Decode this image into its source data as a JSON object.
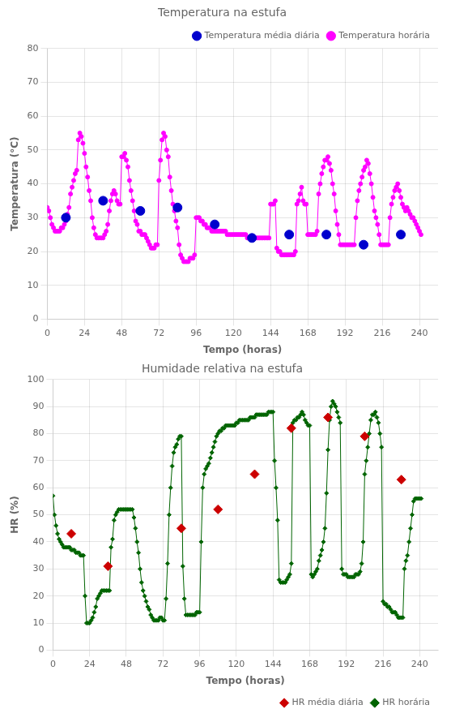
{
  "chart_data": [
    {
      "type": "line",
      "title": "Temperatura na estufa",
      "x_label": "Tempo (horas)",
      "y_label": "Temperatura (°C)",
      "xlim": [
        0,
        252
      ],
      "ylim": [
        0,
        80
      ],
      "xticks": [
        0,
        24,
        48,
        72,
        96,
        120,
        144,
        168,
        192,
        216,
        240
      ],
      "yticks": [
        0,
        10,
        20,
        30,
        40,
        50,
        60,
        70,
        80
      ],
      "grid": true,
      "legend": "upper right",
      "x": [
        0,
        1,
        2,
        3,
        4,
        5,
        6,
        7,
        8,
        9,
        10,
        11,
        12,
        13,
        14,
        15,
        16,
        17,
        18,
        19,
        20,
        21,
        22,
        23,
        24,
        25,
        26,
        27,
        28,
        29,
        30,
        31,
        32,
        33,
        34,
        35,
        36,
        37,
        38,
        39,
        40,
        41,
        42,
        43,
        44,
        45,
        46,
        47,
        48,
        49,
        50,
        51,
        52,
        53,
        54,
        55,
        56,
        57,
        58,
        59,
        60,
        61,
        62,
        63,
        64,
        65,
        66,
        67,
        68,
        69,
        70,
        71,
        72,
        73,
        74,
        75,
        76,
        77,
        78,
        79,
        80,
        81,
        82,
        83,
        84,
        85,
        86,
        87,
        88,
        89,
        90,
        91,
        92,
        93,
        94,
        95,
        96,
        97,
        98,
        99,
        100,
        101,
        102,
        103,
        104,
        105,
        106,
        107,
        108,
        109,
        110,
        111,
        112,
        113,
        114,
        115,
        116,
        117,
        118,
        119,
        120,
        121,
        122,
        123,
        124,
        125,
        126,
        127,
        128,
        129,
        130,
        131,
        132,
        133,
        134,
        135,
        136,
        137,
        138,
        139,
        140,
        141,
        142,
        143,
        144,
        145,
        146,
        147,
        148,
        149,
        150,
        151,
        152,
        153,
        154,
        155,
        156,
        157,
        158,
        159,
        160,
        161,
        162,
        163,
        164,
        165,
        166,
        167,
        168,
        169,
        170,
        171,
        172,
        173,
        174,
        175,
        176,
        177,
        178,
        179,
        180,
        181,
        182,
        183,
        184,
        185,
        186,
        187,
        188,
        189,
        190,
        191,
        192,
        193,
        194,
        195,
        196,
        197,
        198,
        199,
        200,
        201,
        202,
        203,
        204,
        205,
        206,
        207,
        208,
        209,
        210,
        211,
        212,
        213,
        214,
        215,
        216,
        217,
        218,
        219,
        220,
        221,
        222,
        223,
        224,
        225,
        226,
        227,
        228,
        229,
        230,
        231,
        232,
        233,
        234,
        235,
        236,
        237,
        238,
        239,
        240,
        241
      ],
      "series": [
        {
          "name": "Temperatura horária",
          "type": "line",
          "marker": "circle",
          "color": "#FF00FF",
          "values": [
            33,
            32,
            30,
            28,
            27,
            26,
            26,
            26,
            26,
            27,
            27,
            28,
            29,
            31,
            33,
            37,
            39,
            41,
            43,
            44,
            53,
            55,
            54,
            52,
            49,
            45,
            42,
            38,
            35,
            30,
            27,
            25,
            24,
            24,
            24,
            24,
            24,
            25,
            26,
            28,
            32,
            35,
            37,
            38,
            37,
            35,
            34,
            34,
            48,
            48,
            49,
            47,
            45,
            41,
            38,
            35,
            32,
            29,
            28,
            26,
            26,
            25,
            25,
            25,
            24,
            23,
            22,
            21,
            21,
            21,
            22,
            22,
            41,
            47,
            53,
            55,
            54,
            50,
            48,
            42,
            38,
            34,
            32,
            29,
            27,
            22,
            19,
            18,
            17,
            17,
            17,
            17,
            18,
            18,
            18,
            19,
            30,
            30,
            30,
            29,
            29,
            28,
            28,
            27,
            27,
            27,
            26,
            26,
            26,
            26,
            26,
            26,
            26,
            26,
            26,
            26,
            25,
            25,
            25,
            25,
            25,
            25,
            25,
            25,
            25,
            25,
            25,
            25,
            25,
            24,
            24,
            24,
            24,
            24,
            24,
            24,
            24,
            24,
            24,
            24,
            24,
            24,
            24,
            24,
            34,
            34,
            34,
            35,
            21,
            20,
            20,
            19,
            19,
            19,
            19,
            19,
            19,
            19,
            19,
            19,
            20,
            34,
            35,
            37,
            39,
            35,
            34,
            34,
            25,
            25,
            25,
            25,
            25,
            25,
            26,
            37,
            40,
            43,
            45,
            47,
            47,
            48,
            46,
            44,
            40,
            37,
            32,
            28,
            25,
            22,
            22,
            22,
            22,
            22,
            22,
            22,
            22,
            22,
            22,
            30,
            35,
            38,
            40,
            42,
            44,
            45,
            47,
            46,
            43,
            40,
            36,
            32,
            30,
            28,
            25,
            22,
            22,
            22,
            22,
            22,
            22,
            30,
            34,
            36,
            38,
            39,
            40,
            38,
            36,
            34,
            33,
            32,
            33,
            32,
            31,
            30,
            30,
            29,
            28,
            27,
            26,
            25
          ]
        },
        {
          "name": "Temperatura média diária",
          "type": "scatter",
          "marker": "circle",
          "color": "#0000CD",
          "x": [
            12,
            36,
            60,
            84,
            108,
            132,
            156,
            180,
            204,
            228
          ],
          "values": [
            30,
            35,
            32,
            33,
            28,
            24,
            25,
            25,
            22,
            25
          ]
        }
      ]
    },
    {
      "type": "line",
      "title": "Humidade relativa na estufa",
      "x_label": "Tempo (horas)",
      "y_label": "HR (%)",
      "xlim": [
        0,
        252
      ],
      "ylim": [
        0,
        100
      ],
      "xticks": [
        0,
        24,
        48,
        72,
        96,
        120,
        144,
        168,
        192,
        216,
        240
      ],
      "yticks": [
        0,
        10,
        20,
        30,
        40,
        50,
        60,
        70,
        80,
        90,
        100
      ],
      "grid": true,
      "legend": "lower right",
      "x": [
        0,
        1,
        2,
        3,
        4,
        5,
        6,
        7,
        8,
        9,
        10,
        11,
        12,
        13,
        14,
        15,
        16,
        17,
        18,
        19,
        20,
        21,
        22,
        23,
        24,
        25,
        26,
        27,
        28,
        29,
        30,
        31,
        32,
        33,
        34,
        35,
        36,
        37,
        38,
        39,
        40,
        41,
        42,
        43,
        44,
        45,
        46,
        47,
        48,
        49,
        50,
        51,
        52,
        53,
        54,
        55,
        56,
        57,
        58,
        59,
        60,
        61,
        62,
        63,
        64,
        65,
        66,
        67,
        68,
        69,
        70,
        71,
        72,
        73,
        74,
        75,
        76,
        77,
        78,
        79,
        80,
        81,
        82,
        83,
        84,
        85,
        86,
        87,
        88,
        89,
        90,
        91,
        92,
        93,
        94,
        95,
        96,
        97,
        98,
        99,
        100,
        101,
        102,
        103,
        104,
        105,
        106,
        107,
        108,
        109,
        110,
        111,
        112,
        113,
        114,
        115,
        116,
        117,
        118,
        119,
        120,
        121,
        122,
        123,
        124,
        125,
        126,
        127,
        128,
        129,
        130,
        131,
        132,
        133,
        134,
        135,
        136,
        137,
        138,
        139,
        140,
        141,
        142,
        143,
        144,
        145,
        146,
        147,
        148,
        149,
        150,
        151,
        152,
        153,
        154,
        155,
        156,
        157,
        158,
        159,
        160,
        161,
        162,
        163,
        164,
        165,
        166,
        167,
        168,
        169,
        170,
        171,
        172,
        173,
        174,
        175,
        176,
        177,
        178,
        179,
        180,
        181,
        182,
        183,
        184,
        185,
        186,
        187,
        188,
        189,
        190,
        191,
        192,
        193,
        194,
        195,
        196,
        197,
        198,
        199,
        200,
        201,
        202,
        203,
        204,
        205,
        206,
        207,
        208,
        209,
        210,
        211,
        212,
        213,
        214,
        215,
        216,
        217,
        218,
        219,
        220,
        221,
        222,
        223,
        224,
        225,
        226,
        227,
        228,
        229,
        230,
        231,
        232,
        233,
        234,
        235,
        236,
        237,
        238,
        239,
        240,
        241
      ],
      "series": [
        {
          "name": "HR horária",
          "type": "line",
          "marker": "diamond",
          "color": "#006400",
          "values": [
            57,
            50,
            46,
            43,
            41,
            40,
            39,
            38,
            38,
            38,
            38,
            38,
            37,
            37,
            37,
            36,
            36,
            36,
            35,
            35,
            35,
            20,
            10,
            10,
            10,
            11,
            12,
            14,
            16,
            19,
            20,
            21,
            22,
            22,
            22,
            22,
            22,
            22,
            38,
            41,
            48,
            50,
            51,
            52,
            52,
            52,
            52,
            52,
            52,
            52,
            52,
            52,
            52,
            49,
            45,
            40,
            36,
            30,
            25,
            22,
            20,
            18,
            16,
            15,
            13,
            12,
            11,
            11,
            11,
            11,
            12,
            12,
            11,
            11,
            19,
            32,
            50,
            60,
            68,
            73,
            75,
            76,
            78,
            79,
            79,
            31,
            19,
            13,
            13,
            13,
            13,
            13,
            13,
            13,
            14,
            14,
            14,
            40,
            60,
            65,
            67,
            68,
            69,
            71,
            73,
            75,
            77,
            79,
            80,
            81,
            81,
            82,
            82,
            83,
            83,
            83,
            83,
            83,
            83,
            83,
            84,
            84,
            85,
            85,
            85,
            85,
            85,
            85,
            85,
            86,
            86,
            86,
            86,
            87,
            87,
            87,
            87,
            87,
            87,
            87,
            87,
            88,
            88,
            88,
            88,
            70,
            60,
            48,
            26,
            25,
            25,
            25,
            25,
            26,
            27,
            28,
            32,
            84,
            85,
            85,
            86,
            86,
            87,
            88,
            87,
            85,
            84,
            83,
            83,
            28,
            27,
            28,
            29,
            30,
            33,
            35,
            37,
            40,
            45,
            58,
            74,
            85,
            90,
            92,
            91,
            90,
            88,
            86,
            84,
            30,
            28,
            28,
            28,
            27,
            27,
            27,
            27,
            27,
            28,
            28,
            28,
            29,
            32,
            40,
            65,
            70,
            75,
            80,
            85,
            87,
            87,
            88,
            86,
            84,
            80,
            75,
            18,
            17,
            17,
            16,
            16,
            15,
            14,
            14,
            14,
            13,
            12,
            12,
            12,
            12,
            30,
            33,
            35,
            40,
            45,
            50,
            55,
            56,
            56,
            56,
            56,
            56
          ]
        },
        {
          "name": "HR média diária",
          "type": "scatter",
          "marker": "diamond",
          "color": "#CC0000",
          "x": [
            12,
            36,
            84,
            108,
            132,
            156,
            180,
            204,
            228
          ],
          "values": [
            43,
            31,
            45,
            52,
            65,
            82,
            86,
            79,
            63
          ]
        }
      ]
    }
  ]
}
